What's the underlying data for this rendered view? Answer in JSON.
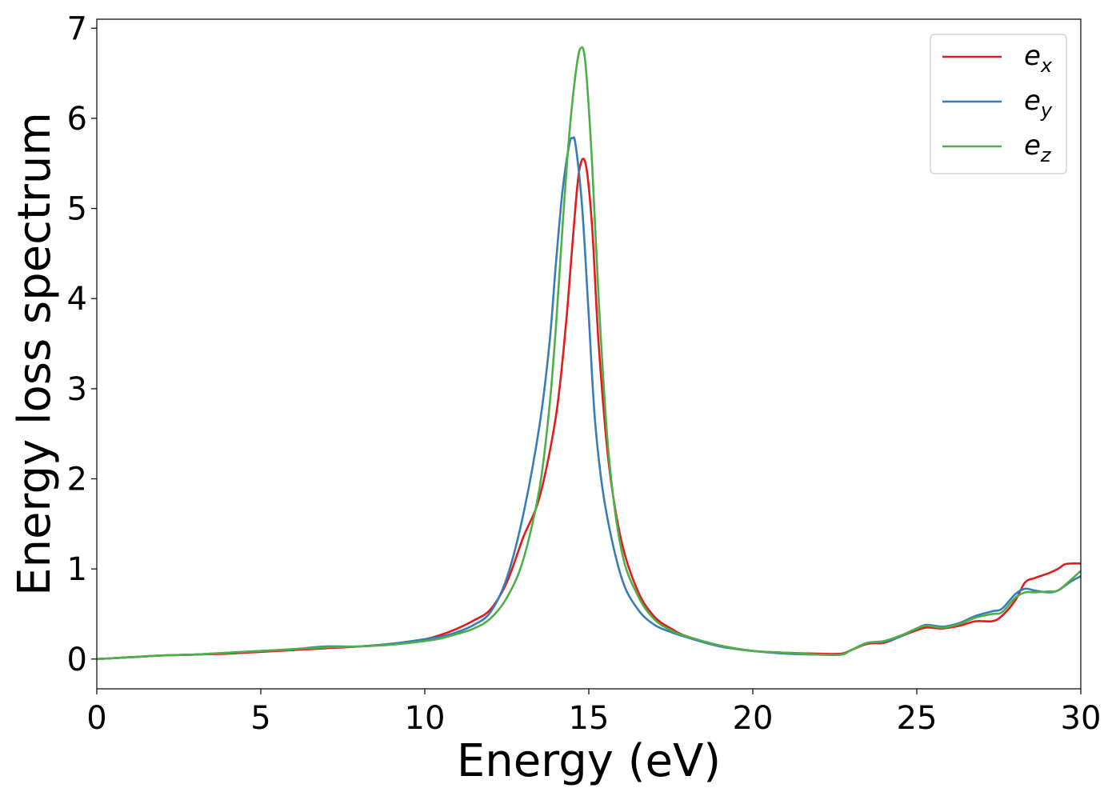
{
  "chart_data": {
    "type": "line",
    "title": "",
    "xlabel": "Energy (eV)",
    "ylabel": "Energy loss spectrum",
    "xlim": [
      0,
      30
    ],
    "ylim": [
      -0.33,
      7.1
    ],
    "xticks": [
      0,
      5,
      10,
      15,
      20,
      25,
      30
    ],
    "yticks": [
      0,
      1,
      2,
      3,
      4,
      5,
      6,
      7
    ],
    "grid": false,
    "legend_position": "top-right",
    "series": [
      {
        "name": "e_x",
        "legend_base": "e",
        "legend_sub": "x",
        "color": "#e41a1c",
        "x": [
          0,
          1,
          2,
          3,
          4,
          5,
          6,
          7,
          8,
          9,
          10,
          10.5,
          11,
          11.5,
          12,
          12.5,
          13,
          13.5,
          14,
          14.3,
          14.5,
          14.7,
          14.9,
          15.1,
          15.3,
          15.6,
          16,
          16.5,
          17,
          17.5,
          18,
          19,
          20,
          21,
          22,
          22.7,
          23,
          23.5,
          24,
          24.5,
          25,
          25.3,
          25.8,
          26.3,
          26.8,
          27.3,
          27.6,
          28,
          28.3,
          28.6,
          29,
          29.3,
          29.5,
          29.7,
          30
        ],
        "values": [
          0,
          0.02,
          0.04,
          0.05,
          0.06,
          0.08,
          0.1,
          0.12,
          0.14,
          0.17,
          0.22,
          0.27,
          0.34,
          0.43,
          0.55,
          0.85,
          1.35,
          1.8,
          2.7,
          3.7,
          4.6,
          5.4,
          5.5,
          4.8,
          3.5,
          2.2,
          1.3,
          0.75,
          0.47,
          0.34,
          0.25,
          0.15,
          0.09,
          0.07,
          0.06,
          0.06,
          0.1,
          0.17,
          0.18,
          0.25,
          0.32,
          0.35,
          0.34,
          0.37,
          0.42,
          0.42,
          0.48,
          0.65,
          0.85,
          0.9,
          0.95,
          1.0,
          1.05,
          1.06,
          1.06
        ]
      },
      {
        "name": "e_y",
        "legend_base": "e",
        "legend_sub": "y",
        "color": "#377eb8",
        "x": [
          0,
          1,
          2,
          3,
          4,
          5,
          6,
          7,
          8,
          9,
          10,
          10.5,
          11,
          11.5,
          12,
          12.5,
          13,
          13.5,
          13.8,
          14,
          14.2,
          14.4,
          14.5,
          14.6,
          14.8,
          15,
          15.2,
          15.5,
          16,
          16.5,
          17,
          17.5,
          18,
          19,
          20,
          21,
          22,
          22.7,
          23,
          23.5,
          24,
          24.5,
          25,
          25.3,
          25.8,
          26.3,
          26.8,
          27.3,
          27.6,
          28,
          28.3,
          28.6,
          29,
          29.3,
          29.7,
          30
        ],
        "values": [
          0,
          0.02,
          0.04,
          0.05,
          0.07,
          0.09,
          0.11,
          0.14,
          0.14,
          0.17,
          0.22,
          0.25,
          0.3,
          0.38,
          0.52,
          0.9,
          1.6,
          2.6,
          3.5,
          4.4,
          5.2,
          5.7,
          5.78,
          5.7,
          5.0,
          3.8,
          2.6,
          1.7,
          0.9,
          0.55,
          0.38,
          0.3,
          0.24,
          0.14,
          0.09,
          0.06,
          0.05,
          0.05,
          0.1,
          0.18,
          0.19,
          0.25,
          0.34,
          0.38,
          0.36,
          0.4,
          0.48,
          0.53,
          0.56,
          0.72,
          0.78,
          0.76,
          0.74,
          0.76,
          0.86,
          0.92
        ]
      },
      {
        "name": "e_z",
        "legend_base": "e",
        "legend_sub": "z",
        "color": "#4daf4a",
        "x": [
          0,
          1,
          2,
          3,
          4,
          5,
          6,
          7,
          8,
          9,
          10,
          10.5,
          11,
          11.5,
          12,
          12.5,
          13,
          13.5,
          13.8,
          14,
          14.2,
          14.4,
          14.6,
          14.75,
          14.9,
          15.1,
          15.3,
          15.6,
          16,
          16.5,
          17,
          17.5,
          18,
          19,
          20,
          21,
          22,
          22.7,
          23,
          23.5,
          24,
          24.5,
          25,
          25.3,
          25.8,
          26.3,
          26.8,
          27.3,
          27.6,
          28,
          28.3,
          28.6,
          29,
          29.3,
          29.7,
          30
        ],
        "values": [
          0,
          0.02,
          0.04,
          0.05,
          0.07,
          0.09,
          0.11,
          0.13,
          0.14,
          0.16,
          0.2,
          0.23,
          0.28,
          0.34,
          0.45,
          0.68,
          1.1,
          1.9,
          2.8,
          3.7,
          4.8,
          5.8,
          6.5,
          6.78,
          6.6,
          5.5,
          4.0,
          2.3,
          1.2,
          0.7,
          0.44,
          0.32,
          0.25,
          0.15,
          0.09,
          0.07,
          0.05,
          0.05,
          0.1,
          0.18,
          0.2,
          0.26,
          0.34,
          0.37,
          0.35,
          0.39,
          0.46,
          0.5,
          0.52,
          0.68,
          0.74,
          0.74,
          0.75,
          0.76,
          0.88,
          0.98
        ]
      }
    ]
  }
}
